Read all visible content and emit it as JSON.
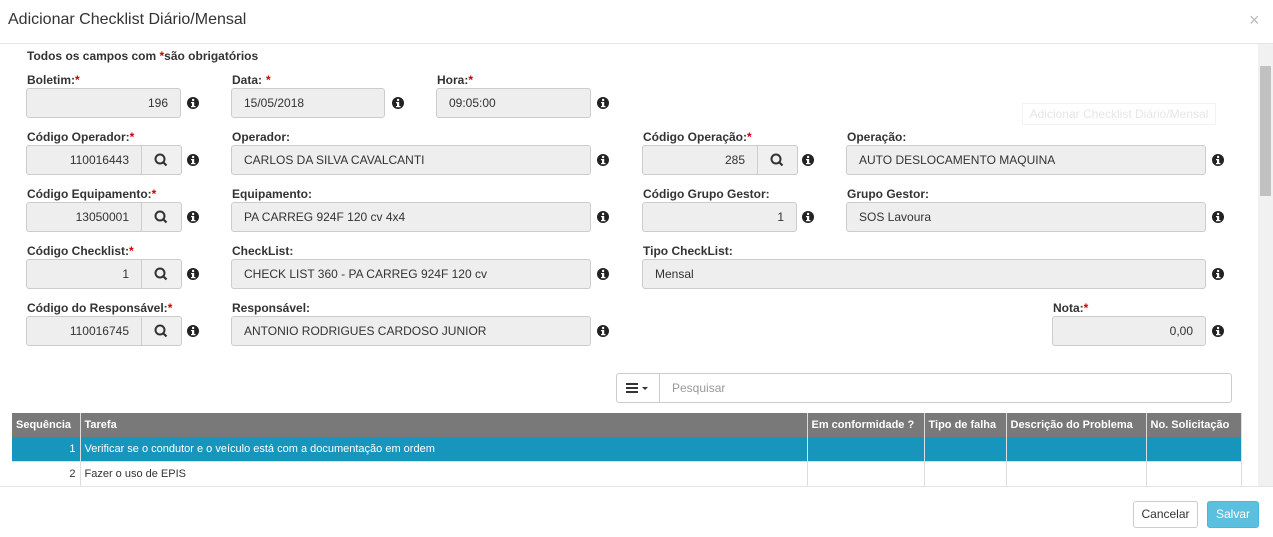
{
  "title": "Adicionar Checklist Diário/Mensal",
  "required_note": {
    "prefix": "Todos os campos com ",
    "star": "*",
    "suffix": "são obrigatórios"
  },
  "fields": [
    {
      "label": "Boletim:",
      "required": "*",
      "value": "196"
    },
    {
      "label": "Data:",
      "required": "*",
      "value": "15/05/2018"
    },
    {
      "label": "Hora:",
      "required": "*",
      "value": "09:05:00"
    },
    {
      "label": "Código Operador:",
      "required": "*",
      "value": "110016443"
    },
    {
      "label": "Operador:",
      "value": "CARLOS DA SILVA CAVALCANTI"
    },
    {
      "label": "Código Operação:",
      "required": "*",
      "value": "285"
    },
    {
      "label": "Operação:",
      "value": "AUTO DESLOCAMENTO MAQUINA"
    },
    {
      "label": "Código Equipamento:",
      "required": "*",
      "value": "13050001"
    },
    {
      "label": "Equipamento:",
      "value": "PA CARREG 924F 120 cv 4x4"
    },
    {
      "label": "Código Grupo Gestor:",
      "value": "1"
    },
    {
      "label": "Grupo Gestor:",
      "value": "SOS Lavoura"
    },
    {
      "label": "Código Checklist:",
      "required": "*",
      "value": "1"
    },
    {
      "label": "CheckList:",
      "value": "CHECK LIST 360 - PA CARREG 924F 120 cv"
    },
    {
      "label": "Tipo CheckList:",
      "value": "Mensal"
    },
    {
      "label": "Código do Responsável:",
      "required": "*",
      "value": "110016745"
    },
    {
      "label": "Responsável:",
      "value": "ANTONIO RODRIGUES CARDOSO JUNIOR"
    },
    {
      "label": "Nota:",
      "required": "*",
      "value": "0,00"
    }
  ],
  "tooltip": "Adicionar Checklist Diário/Mensal",
  "search_placeholder": "Pesquisar",
  "table": {
    "headers": [
      "Sequência",
      "Tarefa",
      "Em conformidade ?",
      "Tipo de falha",
      "Descrição do Problema",
      "No. Solicitação"
    ],
    "rows": [
      {
        "seq": 1,
        "task": "Verificar se o condutor e o veículo está com a documentação em ordem"
      },
      {
        "seq": 2,
        "task": "Fazer o uso de EPIS"
      }
    ]
  },
  "buttons": {
    "cancel": "Cancelar",
    "save": "Salvar"
  }
}
